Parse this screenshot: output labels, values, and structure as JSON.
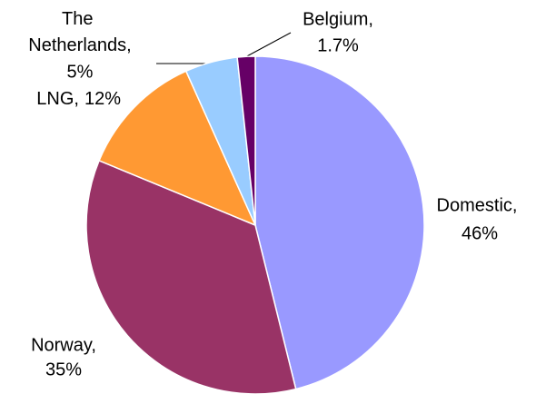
{
  "chart_data": {
    "type": "pie",
    "categories": [
      "Domestic,",
      "Norway,",
      "LNG,",
      "The Netherlands,",
      "Belgium,"
    ],
    "values": [
      46,
      35,
      12,
      5,
      1.7
    ],
    "value_labels": [
      "46%",
      "35%",
      "12%",
      "5%",
      "1.7%"
    ],
    "colors": [
      "#9999ff",
      "#993366",
      "#ff9933",
      "#99ccff",
      "#660066"
    ]
  }
}
